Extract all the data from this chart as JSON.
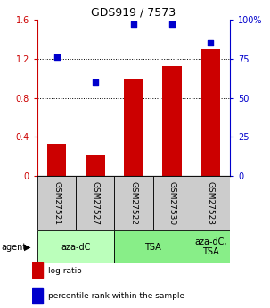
{
  "title": "GDS919 / 7573",
  "samples": [
    "GSM27521",
    "GSM27527",
    "GSM27522",
    "GSM27530",
    "GSM27523"
  ],
  "log_ratio": [
    0.33,
    0.21,
    1.0,
    1.12,
    1.3
  ],
  "percentile_rank": [
    76,
    60,
    97,
    97,
    85
  ],
  "ylim_left": [
    0,
    1.6
  ],
  "ylim_right": [
    0,
    100
  ],
  "yticks_left": [
    0,
    0.4,
    0.8,
    1.2,
    1.6
  ],
  "ytick_labels_left": [
    "0",
    "0.4",
    "0.8",
    "1.2",
    "1.6"
  ],
  "yticks_right": [
    0,
    25,
    50,
    75,
    100
  ],
  "ytick_labels_right": [
    "0",
    "25",
    "50",
    "75",
    "100%"
  ],
  "bar_color": "#cc0000",
  "dot_color": "#0000cc",
  "agent_groups": [
    {
      "label": "aza-dC",
      "start": 0,
      "end": 2,
      "color": "#bbffbb"
    },
    {
      "label": "TSA",
      "start": 2,
      "end": 4,
      "color": "#88ee88"
    },
    {
      "label": "aza-dC,\nTSA",
      "start": 4,
      "end": 5,
      "color": "#88ee88"
    }
  ],
  "legend_items": [
    {
      "color": "#cc0000",
      "label": "log ratio"
    },
    {
      "color": "#0000cc",
      "label": "percentile rank within the sample"
    }
  ],
  "sample_box_color": "#cccccc",
  "bar_width": 0.5,
  "fig_width": 3.03,
  "fig_height": 3.45,
  "dpi": 100
}
